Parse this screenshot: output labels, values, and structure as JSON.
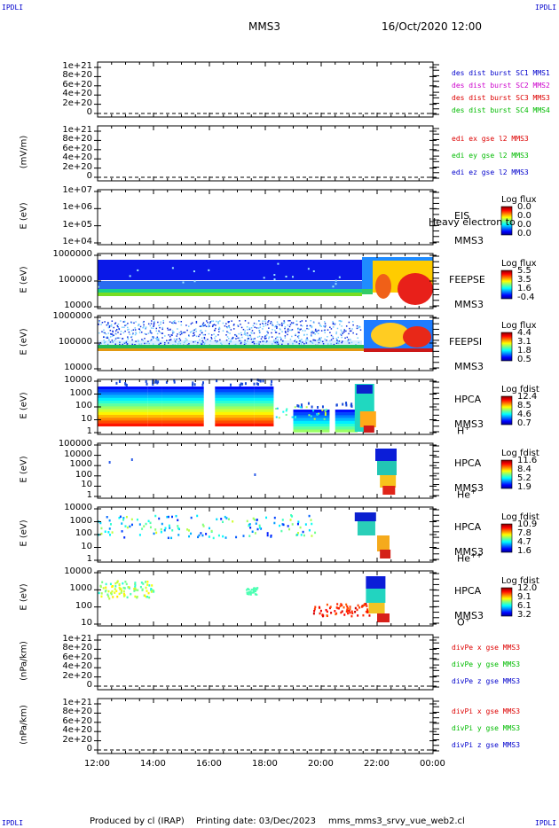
{
  "corners": {
    "tl": "IPDLI",
    "tr": "IPDLI",
    "bl": "IPDLI",
    "br": "IPDLI"
  },
  "header": {
    "mission": "MMS3",
    "date": "16/Oct/2020 12:00"
  },
  "footer": {
    "producer": "Produced by cl (IRAP)",
    "printing": "Printing date: 03/Dec/2023",
    "file": "mms_mms3_srvy_vue_web2.cl"
  },
  "chart_data": {
    "type": "heatmap",
    "x_range": [
      "12:00",
      "00:00"
    ],
    "x_ticks": [
      "12:00",
      "14:00",
      "16:00",
      "18:00",
      "20:00",
      "22:00",
      "00:00"
    ],
    "panels": [
      {
        "id": "p1",
        "kind": "line",
        "ylabel": "",
        "yticks": [
          "1e+21",
          "8e+20",
          "6e+20",
          "4e+20",
          "2e+20",
          "0"
        ],
        "legend": [
          {
            "text": "des dist burst SC1 MMS1",
            "color": "#0000cc"
          },
          {
            "text": "des dist burst SC2 MMS2",
            "color": "#cc00cc"
          },
          {
            "text": "des dist burst SC3 MMS3",
            "color": "#dd0000"
          },
          {
            "text": "des dist burst SC4 MMS4",
            "color": "#00bb00"
          }
        ]
      },
      {
        "id": "p2",
        "kind": "line",
        "ylabel": "(mV/m)",
        "yticks": [
          "1e+21",
          "8e+20",
          "6e+20",
          "4e+20",
          "2e+20",
          "0"
        ],
        "legend": [
          {
            "text": "edi ex gse l2 MMS3",
            "color": "#dd0000"
          },
          {
            "text": "edi ey gse l2 MMS3",
            "color": "#00bb00"
          },
          {
            "text": "edi ez gse l2 MMS3",
            "color": "#0000cc"
          }
        ]
      },
      {
        "id": "p3",
        "kind": "spectro",
        "ylabel": "E (eV)",
        "yticks": [
          "1e+07",
          "1e+06",
          "1e+05",
          "1e+04"
        ],
        "instrument": [
          "EIS",
          "MMS3"
        ],
        "overlay": "Heavy electron to",
        "cb_title": "Log flux",
        "cb_values": [
          "0.0",
          "0.0",
          "0.0",
          "0.0"
        ]
      },
      {
        "id": "p4",
        "kind": "spectro",
        "ylabel": "E (eV)",
        "yticks": [
          "1000000",
          "100000",
          "10000"
        ],
        "instrument": [
          "FEEPSE",
          "MMS3"
        ],
        "cb_title": "Log flux",
        "cb_values": [
          "5.5",
          "3.5",
          "1.6",
          "-0.4"
        ]
      },
      {
        "id": "p5",
        "kind": "spectro",
        "ylabel": "E (eV)",
        "yticks": [
          "1000000",
          "100000",
          "10000"
        ],
        "instrument": [
          "FEEPSI",
          "MMS3"
        ],
        "cb_title": "Log flux",
        "cb_values": [
          "4.4",
          "3.1",
          "1.8",
          "0.5"
        ]
      },
      {
        "id": "p6",
        "kind": "spectro",
        "ylabel": "E (eV)",
        "yticks": [
          "10000",
          "1000",
          "100",
          "10",
          "1"
        ],
        "instrument": [
          "HPCA",
          "MMS3"
        ],
        "species": "H",
        "species_sup": "+",
        "cb_title": "Log fdist",
        "cb_values": [
          "12.4",
          "8.5",
          "4.6",
          "0.7"
        ]
      },
      {
        "id": "p7",
        "kind": "spectro",
        "ylabel": "E (eV)",
        "yticks": [
          "100000",
          "10000",
          "1000",
          "100",
          "10",
          "1"
        ],
        "instrument": [
          "HPCA",
          "MMS3"
        ],
        "species": "He",
        "species_sup": "+",
        "cb_title": "Log fdist",
        "cb_values": [
          "11.6",
          "8.4",
          "5.2",
          "1.9"
        ]
      },
      {
        "id": "p8",
        "kind": "spectro",
        "ylabel": "E (eV)",
        "yticks": [
          "10000",
          "1000",
          "100",
          "10",
          "1"
        ],
        "instrument": [
          "HPCA",
          "MMS3"
        ],
        "species": "He",
        "species_sup": "++",
        "cb_title": "Log fdist",
        "cb_values": [
          "10.9",
          "7.8",
          "4.7",
          "1.6"
        ]
      },
      {
        "id": "p9",
        "kind": "spectro",
        "ylabel": "E (eV)",
        "yticks": [
          "10000",
          "1000",
          "100",
          "10"
        ],
        "instrument": [
          "HPCA",
          "MMS3"
        ],
        "species": "O",
        "species_sup": "+",
        "cb_title": "Log fdist",
        "cb_values": [
          "12.0",
          "9.1",
          "6.1",
          "3.2"
        ]
      },
      {
        "id": "p10",
        "kind": "line",
        "ylabel": "(nPa/km)",
        "yticks": [
          "1e+21",
          "8e+20",
          "6e+20",
          "4e+20",
          "2e+20",
          "0"
        ],
        "legend": [
          {
            "text": "divPe x gse MMS3",
            "color": "#dd0000"
          },
          {
            "text": "divPe y gse MMS3",
            "color": "#00bb00"
          },
          {
            "text": "divPe z gse MMS3",
            "color": "#0000cc"
          }
        ]
      },
      {
        "id": "p11",
        "kind": "line",
        "ylabel": "(nPa/km)",
        "yticks": [
          "1e+21",
          "8e+20",
          "6e+20",
          "4e+20",
          "2e+20",
          "0"
        ],
        "legend": [
          {
            "text": "divPi x gse MMS3",
            "color": "#dd0000"
          },
          {
            "text": "divPi y gse MMS3",
            "color": "#00bb00"
          },
          {
            "text": "divPi z gse MMS3",
            "color": "#0000cc"
          }
        ]
      }
    ]
  }
}
